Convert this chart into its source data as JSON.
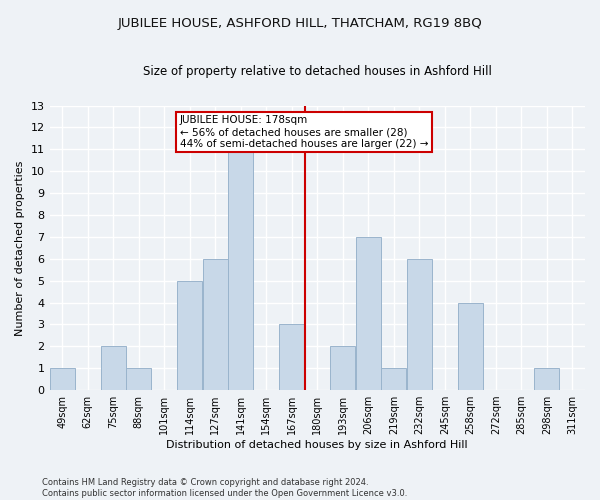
{
  "title": "JUBILEE HOUSE, ASHFORD HILL, THATCHAM, RG19 8BQ",
  "subtitle": "Size of property relative to detached houses in Ashford Hill",
  "xlabel": "Distribution of detached houses by size in Ashford Hill",
  "ylabel": "Number of detached properties",
  "bin_labels": [
    "49sqm",
    "62sqm",
    "75sqm",
    "88sqm",
    "101sqm",
    "114sqm",
    "127sqm",
    "141sqm",
    "154sqm",
    "167sqm",
    "180sqm",
    "193sqm",
    "206sqm",
    "219sqm",
    "232sqm",
    "245sqm",
    "258sqm",
    "272sqm",
    "285sqm",
    "298sqm",
    "311sqm"
  ],
  "bar_values": [
    1,
    0,
    2,
    1,
    0,
    5,
    6,
    11,
    0,
    3,
    0,
    2,
    7,
    1,
    6,
    0,
    4,
    0,
    0,
    1,
    0
  ],
  "bar_color": "#c8d8e8",
  "bar_edge_color": "#9ab4cc",
  "annotation_title": "JUBILEE HOUSE: 178sqm",
  "annotation_line1": "← 56% of detached houses are smaller (28)",
  "annotation_line2": "44% of semi-detached houses are larger (22) →",
  "annotation_box_color": "#cc0000",
  "ylim": [
    0,
    13
  ],
  "yticks": [
    0,
    1,
    2,
    3,
    4,
    5,
    6,
    7,
    8,
    9,
    10,
    11,
    12,
    13
  ],
  "footer1": "Contains HM Land Registry data © Crown copyright and database right 2024.",
  "footer2": "Contains public sector information licensed under the Open Government Licence v3.0.",
  "bg_color": "#eef2f6",
  "grid_color": "#ffffff"
}
